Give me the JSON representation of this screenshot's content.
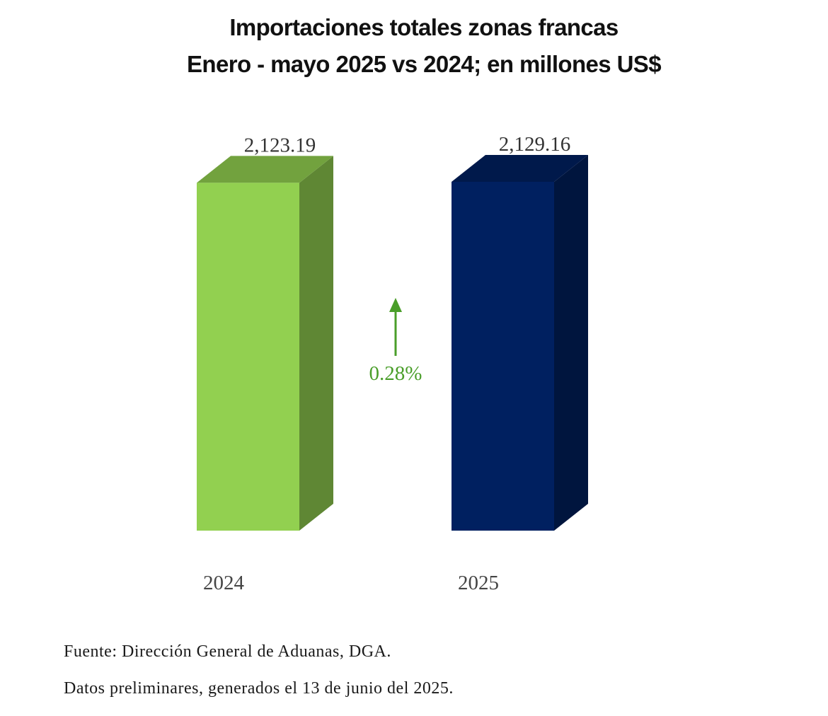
{
  "chart_data": {
    "type": "bar",
    "title": "Importaciones totales zonas francas",
    "subtitle": "Enero - mayo 2025 vs 2024; en millones US$",
    "categories": [
      "2024",
      "2025"
    ],
    "values": [
      2123.19,
      2129.16
    ],
    "value_labels": [
      "2,123.19",
      "2,129.16"
    ],
    "colors": {
      "2024": "#92d050",
      "2025": "#002060"
    },
    "style": "3d-column",
    "annotation": {
      "text": "0.28%",
      "direction": "up",
      "color": "#4a9e2a"
    },
    "xlabel": "",
    "ylabel": "",
    "legend": "none",
    "grid": false
  },
  "footer": {
    "source": "Fuente: Dirección General de Aduanas, DGA.",
    "note": "Datos preliminares, generados el 13 de junio del 2025."
  }
}
